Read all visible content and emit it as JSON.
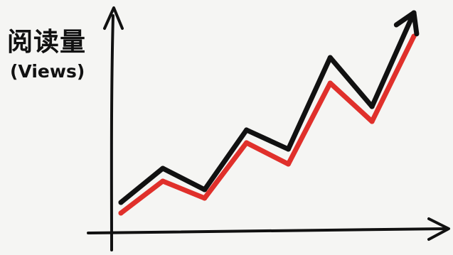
{
  "chart_data": {
    "type": "line",
    "title": "",
    "xlabel": "",
    "ylabel": "阅读量",
    "ylabel_sub": "(Views)",
    "ylim": [
      0,
      100
    ],
    "grid": false,
    "legend": "none",
    "x": [
      0,
      1,
      2,
      3,
      4,
      5,
      6,
      7
    ],
    "series": [
      {
        "color": "#111111",
        "values": [
          9,
          25,
          15,
          43,
          34,
          77,
          54,
          98
        ],
        "arrow_end": true
      },
      {
        "color": "#e0302b",
        "values": [
          4,
          19,
          11,
          37,
          27,
          65,
          47,
          87
        ],
        "arrow_end": false
      }
    ]
  }
}
